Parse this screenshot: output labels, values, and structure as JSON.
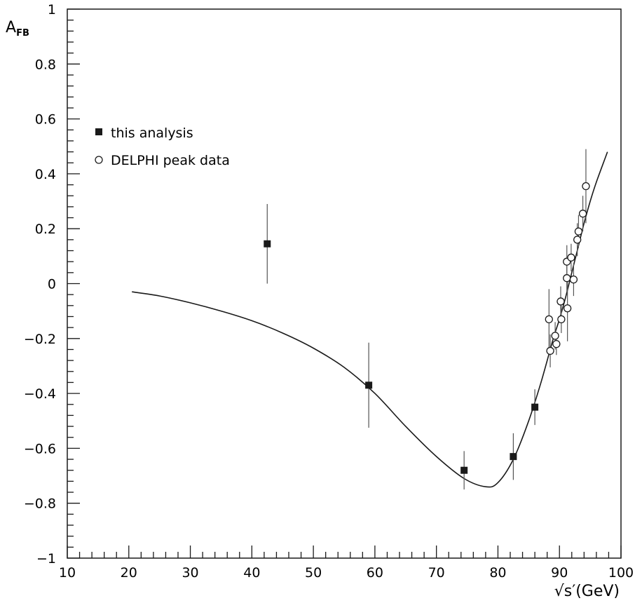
{
  "chart_data": {
    "type": "scatter",
    "title": "",
    "xlabel": "√s′(GeV)",
    "ylabel": "A",
    "ylabel_sub": "FB",
    "xlim": [
      10,
      100
    ],
    "ylim": [
      -1,
      1
    ],
    "x_ticks": [
      "10",
      "20",
      "30",
      "40",
      "50",
      "60",
      "70",
      "80",
      "90",
      "100"
    ],
    "y_ticks": [
      "−1",
      "−0.8",
      "−0.6",
      "−0.4",
      "−0.2",
      "0",
      "0.2",
      "0.4",
      "0.6",
      "0.8",
      "1"
    ],
    "legend": {
      "placement": "upper-left"
    },
    "grid": false,
    "series": [
      {
        "name": "this analysis",
        "marker": "filled-square",
        "color": "#1a1a1a",
        "points": [
          {
            "x": 42.5,
            "y": 0.145,
            "yerr": 0.145
          },
          {
            "x": 59.0,
            "y": -0.37,
            "yerr": 0.155
          },
          {
            "x": 74.5,
            "y": -0.68,
            "yerr": 0.07
          },
          {
            "x": 82.5,
            "y": -0.63,
            "yerr": 0.085
          },
          {
            "x": 86.0,
            "y": -0.45,
            "yerr": 0.065
          }
        ]
      },
      {
        "name": "DELPHI peak data",
        "marker": "open-circle",
        "color": "#1a1a1a",
        "points": [
          {
            "x": 88.3,
            "y": -0.13,
            "yerr": 0.11
          },
          {
            "x": 88.5,
            "y": -0.245,
            "yerr": 0.06
          },
          {
            "x": 89.3,
            "y": -0.19,
            "yerr": 0.05
          },
          {
            "x": 89.5,
            "y": -0.22,
            "yerr": 0.04
          },
          {
            "x": 90.2,
            "y": -0.065,
            "yerr": 0.055
          },
          {
            "x": 90.3,
            "y": -0.13,
            "yerr": 0.05
          },
          {
            "x": 91.2,
            "y": 0.08,
            "yerr": 0.06
          },
          {
            "x": 91.2,
            "y": 0.02,
            "yerr": 0.05
          },
          {
            "x": 91.3,
            "y": -0.09,
            "yerr": 0.12
          },
          {
            "x": 91.9,
            "y": 0.095,
            "yerr": 0.05
          },
          {
            "x": 92.3,
            "y": 0.015,
            "yerr": 0.06
          },
          {
            "x": 92.9,
            "y": 0.16,
            "yerr": 0.06
          },
          {
            "x": 93.1,
            "y": 0.19,
            "yerr": 0.06
          },
          {
            "x": 93.8,
            "y": 0.255,
            "yerr": 0.065
          },
          {
            "x": 94.3,
            "y": 0.355,
            "yerr": 0.135
          }
        ]
      }
    ],
    "fit_curve": [
      {
        "x": 20.5,
        "y": -0.03
      },
      {
        "x": 25,
        "y": -0.045
      },
      {
        "x": 30,
        "y": -0.07
      },
      {
        "x": 35,
        "y": -0.1
      },
      {
        "x": 40,
        "y": -0.135
      },
      {
        "x": 45,
        "y": -0.18
      },
      {
        "x": 50,
        "y": -0.235
      },
      {
        "x": 55,
        "y": -0.305
      },
      {
        "x": 60,
        "y": -0.4
      },
      {
        "x": 65,
        "y": -0.52
      },
      {
        "x": 70,
        "y": -0.63
      },
      {
        "x": 74.5,
        "y": -0.71
      },
      {
        "x": 78,
        "y": -0.74
      },
      {
        "x": 80,
        "y": -0.725
      },
      {
        "x": 82.5,
        "y": -0.64
      },
      {
        "x": 85,
        "y": -0.5
      },
      {
        "x": 87,
        "y": -0.36
      },
      {
        "x": 89,
        "y": -0.2
      },
      {
        "x": 90,
        "y": -0.13
      },
      {
        "x": 91,
        "y": -0.05
      },
      {
        "x": 92,
        "y": 0.04
      },
      {
        "x": 93,
        "y": 0.13
      },
      {
        "x": 94,
        "y": 0.22
      },
      {
        "x": 95,
        "y": 0.3
      },
      {
        "x": 96,
        "y": 0.37
      },
      {
        "x": 97.8,
        "y": 0.48
      }
    ]
  }
}
